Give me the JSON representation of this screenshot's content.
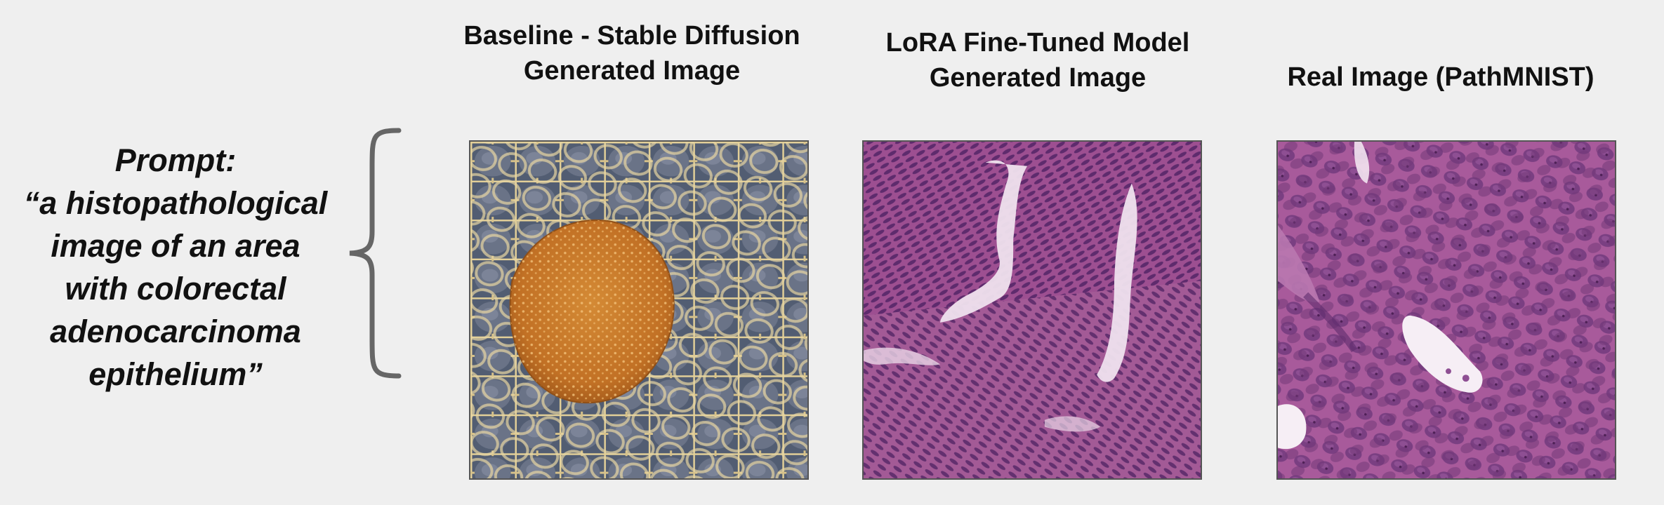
{
  "prompt": {
    "lines": [
      "Prompt:",
      "“a histopathological",
      "image of an area",
      "with colorectal",
      "adenocarcinoma",
      "epithelium”"
    ]
  },
  "columns": [
    {
      "title_lines": [
        "Baseline - Stable Diffusion",
        "Generated Image"
      ]
    },
    {
      "title_lines": [
        "LoRA Fine-Tuned Model",
        "Generated Image"
      ]
    },
    {
      "title_lines": [
        "Real Image (PathMNIST)"
      ]
    }
  ],
  "colors": {
    "background": "#efefef",
    "brace": "#666666",
    "baseline_bg": "#4f5a6e",
    "baseline_membrane": "#e2cf98",
    "baseline_blob": "#c7782a",
    "tissue_bg": "#9a4f8f",
    "tissue_nuclei": "#5a2a6a",
    "tissue_lumen": "#f1e4f0"
  }
}
